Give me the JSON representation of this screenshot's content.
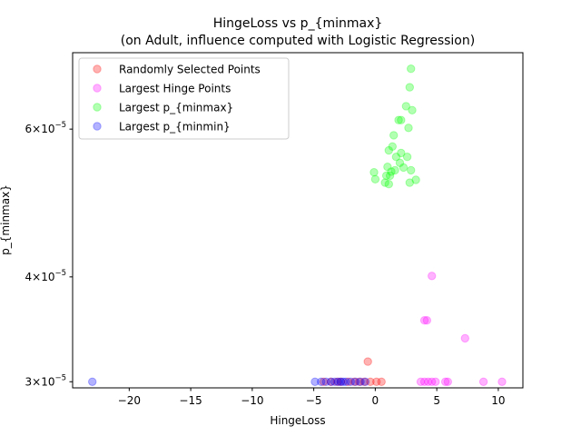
{
  "chart_data": {
    "type": "scatter",
    "title": "HingeLoss vs p_{minmax}",
    "subtitle": "(on Adult, influence computed with Logistic Regression)",
    "xlabel": "HingeLoss",
    "ylabel": "p_{minmax}",
    "xlim": [
      -24.6,
      12.0
    ],
    "ylim": [
      2.95e-05,
      7.4e-05
    ],
    "yscale": "log",
    "x_ticks": [
      -20,
      -15,
      -10,
      -5,
      0,
      5,
      10
    ],
    "x_tick_labels": [
      "−20",
      "−15",
      "−10",
      "−5",
      "0",
      "5",
      "10"
    ],
    "y_ticks": [
      3e-05,
      4e-05,
      6e-05
    ],
    "y_tick_labels": [
      {
        "base": "3",
        "exp": "−5"
      },
      {
        "base": "4",
        "exp": "−5"
      },
      {
        "base": "6",
        "exp": "−5"
      }
    ],
    "grid": false,
    "legend_position": "top-left",
    "series": [
      {
        "name": "Randomly Selected Points",
        "color": "#ff0000",
        "points": [
          [
            -0.6,
            3.17e-05
          ],
          [
            -4.2,
            3e-05
          ],
          [
            -3.6,
            3e-05
          ],
          [
            -2.8,
            3e-05
          ],
          [
            -2.2,
            3e-05
          ],
          [
            -1.7,
            3e-05
          ],
          [
            -1.3,
            3e-05
          ],
          [
            -0.9,
            3e-05
          ],
          [
            -0.4,
            3e-05
          ],
          [
            0.1,
            3e-05
          ],
          [
            0.5,
            3e-05
          ],
          [
            -3.1,
            3e-05
          ]
        ]
      },
      {
        "name": "Largest Hinge Points",
        "color": "#ff00ff",
        "points": [
          [
            4.6,
            4.01e-05
          ],
          [
            4.0,
            3.55e-05
          ],
          [
            4.2,
            3.55e-05
          ],
          [
            7.3,
            3.38e-05
          ],
          [
            3.7,
            3e-05
          ],
          [
            4.0,
            3e-05
          ],
          [
            4.3,
            3e-05
          ],
          [
            4.6,
            3e-05
          ],
          [
            4.9,
            3e-05
          ],
          [
            5.7,
            3e-05
          ],
          [
            5.9,
            3e-05
          ],
          [
            8.8,
            3e-05
          ],
          [
            10.3,
            3e-05
          ]
        ]
      },
      {
        "name": "Largest p_{minmax}",
        "color": "#00ff00",
        "points": [
          [
            2.9,
            7.08e-05
          ],
          [
            2.8,
            6.73e-05
          ],
          [
            2.5,
            6.39e-05
          ],
          [
            3.0,
            6.32e-05
          ],
          [
            1.9,
            6.15e-05
          ],
          [
            2.1,
            6.15e-05
          ],
          [
            2.7,
            6.02e-05
          ],
          [
            1.5,
            5.9e-05
          ],
          [
            1.4,
            5.72e-05
          ],
          [
            1.1,
            5.66e-05
          ],
          [
            2.1,
            5.62e-05
          ],
          [
            1.7,
            5.56e-05
          ],
          [
            2.6,
            5.56e-05
          ],
          [
            2.0,
            5.47e-05
          ],
          [
            1.0,
            5.41e-05
          ],
          [
            2.3,
            5.4e-05
          ],
          [
            1.6,
            5.36e-05
          ],
          [
            1.3,
            5.34e-05
          ],
          [
            2.9,
            5.36e-05
          ],
          [
            -0.1,
            5.33e-05
          ],
          [
            0.9,
            5.28e-05
          ],
          [
            1.2,
            5.28e-05
          ],
          [
            0.0,
            5.23e-05
          ],
          [
            3.3,
            5.22e-05
          ],
          [
            0.8,
            5.18e-05
          ],
          [
            1.1,
            5.16e-05
          ],
          [
            2.8,
            5.18e-05
          ]
        ]
      },
      {
        "name": "Largest p_{minmin}",
        "color": "#0000ff",
        "points": [
          [
            -23.0,
            3e-05
          ],
          [
            -4.9,
            3e-05
          ],
          [
            -4.4,
            3e-05
          ],
          [
            -4.0,
            3e-05
          ],
          [
            -3.6,
            3e-05
          ],
          [
            -3.3,
            3e-05
          ],
          [
            -3.0,
            3e-05
          ],
          [
            -2.8,
            3e-05
          ],
          [
            -2.6,
            3e-05
          ],
          [
            -2.4,
            3e-05
          ],
          [
            -2.0,
            3e-05
          ],
          [
            -1.6,
            3e-05
          ],
          [
            -1.2,
            3e-05
          ],
          [
            -0.8,
            3e-05
          ]
        ]
      }
    ]
  }
}
